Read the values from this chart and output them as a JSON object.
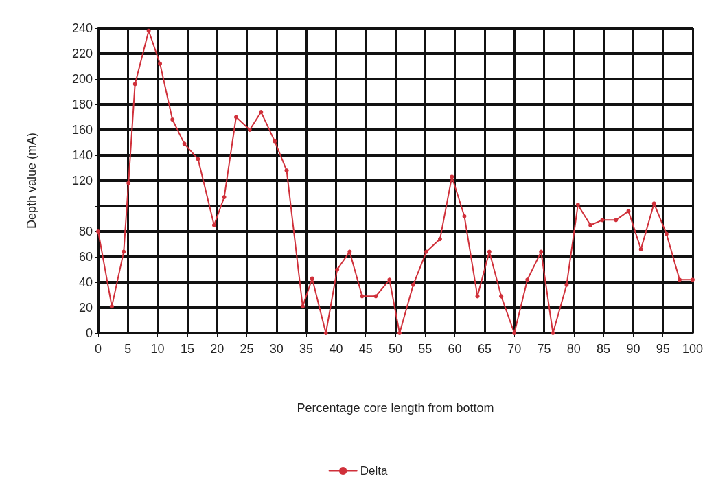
{
  "chart_data": {
    "type": "line",
    "xlabel": "Percentage core length from bottom",
    "ylabel": "Depth value (mA)",
    "xlim": [
      0,
      100
    ],
    "xticks": [
      0,
      5,
      10,
      15,
      20,
      25,
      30,
      35,
      40,
      45,
      50,
      55,
      60,
      65,
      70,
      75,
      80,
      85,
      90,
      95,
      100
    ],
    "ylim": [
      0,
      240
    ],
    "yticks": [
      0,
      20,
      40,
      60,
      80,
      {
        "value": 100,
        "label": null
      },
      120,
      140,
      160,
      180,
      200,
      220,
      240
    ],
    "grid": true,
    "legend": "bottom",
    "marker": "circle",
    "line_style": "solid",
    "series": [
      {
        "name": "Delta",
        "color": "#d0303a",
        "x": [
          0,
          2.3,
          4.3,
          5.1,
          6.2,
          8.5,
          10.4,
          12.5,
          14.5,
          16.8,
          19.5,
          21.2,
          23.2,
          25.5,
          27.4,
          29.7,
          31.7,
          34.4,
          36,
          38.3,
          40.2,
          42.3,
          44.4,
          46.7,
          49,
          50.7,
          53,
          55.2,
          57.5,
          59.5,
          61.6,
          63.8,
          65.8,
          67.8,
          70,
          72.2,
          74.5,
          76.5,
          78.8,
          80.7,
          82.8,
          84.8,
          87.1,
          89.2,
          91.3,
          93.5,
          95.6,
          97.8,
          100
        ],
        "values": [
          80,
          21,
          64,
          118,
          196,
          238,
          212,
          168,
          149,
          137,
          85,
          107,
          170,
          160,
          174,
          151,
          128,
          21,
          43,
          0,
          50,
          64,
          29,
          29,
          42,
          0,
          38,
          64,
          74,
          123,
          92,
          29,
          64,
          29,
          0,
          42,
          64,
          0,
          38,
          101,
          85,
          89,
          89,
          96,
          66,
          102,
          78,
          42,
          42
        ]
      }
    ]
  }
}
